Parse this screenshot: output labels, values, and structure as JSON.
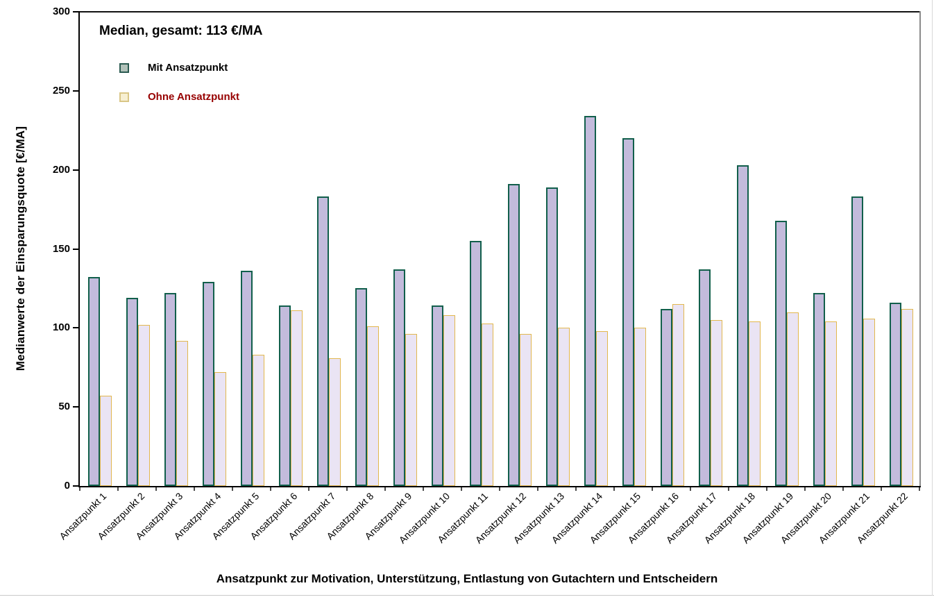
{
  "chart_data": {
    "type": "bar",
    "title": "Median, gesamt: 113 €/MA",
    "xlabel": "Ansatzpunkt zur Motivation, Unterstützung, Entlastung von Gutachtern und Entscheidern",
    "ylabel": "Medianwerte der Einsparungsquote [€/MA]",
    "ylim": [
      0,
      300
    ],
    "yticks": [
      0,
      50,
      100,
      150,
      200,
      250,
      300
    ],
    "grid": false,
    "legend_position": "top-left-inside",
    "categories": [
      "Ansatzpunkt 1",
      "Ansatzpunkt 2",
      "Ansatzpunkt 3",
      "Ansatzpunkt 4",
      "Ansatzpunkt 5",
      "Ansatzpunkt 6",
      "Ansatzpunkt 7",
      "Ansatzpunkt 8",
      "Ansatzpunkt 9",
      "Ansatzpunkt 10",
      "Ansatzpunkt 11",
      "Ansatzpunkt 12",
      "Ansatzpunkt 13",
      "Ansatzpunkt 14",
      "Ansatzpunkt 15",
      "Ansatzpunkt 16",
      "Ansatzpunkt 17",
      "Ansatzpunkt 18",
      "Ansatzpunkt 19",
      "Ansatzpunkt 20",
      "Ansatzpunkt 21",
      "Ansatzpunkt 22"
    ],
    "series": [
      {
        "name": "Mit Ansatzpunkt",
        "values": [
          132,
          119,
          122,
          129,
          136,
          114,
          183,
          125,
          137,
          114,
          155,
          191,
          189,
          234,
          220,
          112,
          137,
          203,
          168,
          122,
          183,
          116
        ],
        "fill": "#c3bbdc",
        "border": "#115f4b",
        "label_color": "#000000",
        "swatch_fill": "#b2c2ba",
        "swatch_border": "#2a5a50"
      },
      {
        "name": "Ohne Ansatzpunkt",
        "values": [
          57,
          102,
          92,
          72,
          83,
          111,
          81,
          101,
          96,
          108,
          103,
          96,
          100,
          98,
          100,
          115,
          105,
          104,
          110,
          104,
          106,
          112
        ],
        "fill": "#eae4f4",
        "border": "#e2b74d",
        "label_color": "#970000",
        "swatch_fill": "#f7efd2",
        "swatch_border": "#d9c686"
      }
    ]
  }
}
